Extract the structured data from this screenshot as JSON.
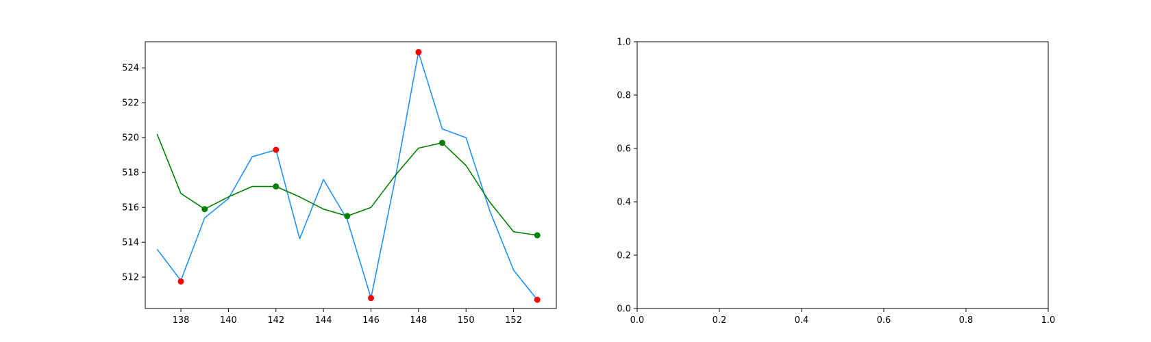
{
  "chart_data": [
    {
      "type": "line",
      "title": "",
      "xlabel": "",
      "ylabel": "",
      "xlim": [
        136.5,
        153.8
      ],
      "ylim": [
        510.2,
        525.5
      ],
      "xticks": [
        138,
        140,
        142,
        144,
        146,
        148,
        150,
        152
      ],
      "yticks": [
        512,
        514,
        516,
        518,
        520,
        522,
        524
      ],
      "grid": false,
      "legend": "none",
      "series": [
        {
          "color": "#1e90ff",
          "x": [
            137,
            138,
            139,
            140,
            141,
            142,
            143,
            144,
            145,
            146,
            147,
            148,
            149,
            150,
            151,
            152,
            153
          ],
          "y": [
            513.6,
            511.8,
            515.4,
            516.5,
            518.9,
            519.3,
            514.2,
            517.6,
            515.3,
            510.8,
            517.5,
            524.9,
            520.5,
            520.0,
            515.8,
            512.4,
            510.7
          ]
        },
        {
          "color": "#008000",
          "x": [
            137,
            138,
            139,
            140,
            141,
            142,
            143,
            144,
            145,
            146,
            147,
            148,
            149,
            150,
            151,
            152,
            153
          ],
          "y": [
            520.2,
            516.8,
            515.9,
            516.6,
            517.2,
            517.2,
            516.6,
            515.9,
            515.5,
            516.0,
            517.8,
            519.4,
            519.7,
            518.4,
            516.3,
            514.6,
            514.4
          ]
        }
      ],
      "markers": [
        {
          "color": "#ff0000",
          "x": [
            138,
            142,
            146,
            148,
            153
          ],
          "y": [
            511.75,
            519.3,
            510.8,
            524.9,
            510.7
          ]
        },
        {
          "color": "#008000",
          "x": [
            139,
            142,
            145,
            149,
            153
          ],
          "y": [
            515.9,
            517.2,
            515.5,
            519.7,
            514.4
          ]
        }
      ]
    },
    {
      "type": "line",
      "title": "",
      "xlabel": "",
      "ylabel": "",
      "xlim": [
        0,
        1
      ],
      "ylim": [
        0,
        1
      ],
      "xticks": [
        "0.0",
        "0.2",
        "0.4",
        "0.6",
        "0.8",
        "1.0"
      ],
      "yticks": [
        "0.0",
        "0.2",
        "0.4",
        "0.6",
        "0.8",
        "1.0"
      ],
      "grid": false,
      "legend": "none",
      "series": []
    }
  ]
}
